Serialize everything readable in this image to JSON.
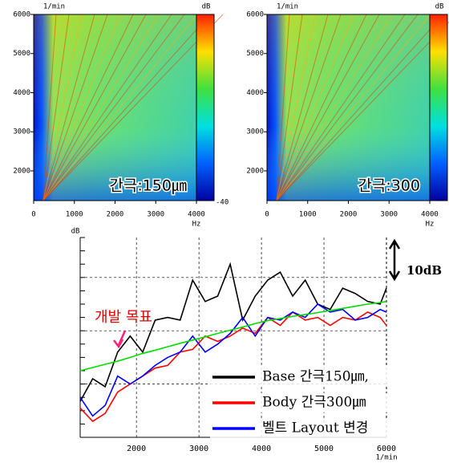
{
  "chart_data": [
    {
      "type": "spectrogram",
      "y_label": "1/min",
      "x_unit": "Hz",
      "colorbar_label": "dB",
      "colorbar_min_label": "-40",
      "annotation": "간극:150㎛",
      "xlim": [
        0,
        4000
      ],
      "ylim": [
        1240,
        6000
      ],
      "xticks": [
        0,
        1000,
        2000,
        3000,
        4000
      ],
      "yticks": [
        2000,
        3000,
        4000,
        5000,
        6000
      ]
    },
    {
      "type": "spectrogram",
      "y_label": "1/min",
      "x_unit": "Hz",
      "colorbar_label": "dB",
      "annotation": "간극:300",
      "xlim": [
        0,
        4000
      ],
      "ylim": [
        1240,
        6000
      ],
      "xticks": [
        0,
        1000,
        2000,
        3000,
        4000
      ],
      "yticks": [
        2000,
        3000,
        4000,
        5000,
        6000
      ]
    },
    {
      "type": "line",
      "y_label": "dB",
      "x_label": "1/min",
      "scale_label": "10dB",
      "target_label": "개발 목표",
      "xlim": [
        1100,
        6000
      ],
      "ylim": [
        0,
        75
      ],
      "xticks": [
        2000,
        3000,
        4000,
        5000,
        6000
      ],
      "yticks": [
        0,
        5,
        10,
        15,
        20,
        25,
        30,
        35,
        40,
        45,
        50,
        55,
        60,
        65,
        70,
        75
      ],
      "grid_yticks": [
        20,
        40,
        60
      ],
      "x": [
        1100,
        1300,
        1500,
        1700,
        1900,
        2100,
        2300,
        2500,
        2700,
        2900,
        3100,
        3300,
        3500,
        3700,
        3900,
        4100,
        4300,
        4500,
        4700,
        4900,
        5100,
        5300,
        5500,
        5700,
        5900,
        6000
      ],
      "series": [
        {
          "name": "Base 간극150㎛,",
          "color": "#000000",
          "values": [
            13.5,
            22,
            19,
            32,
            38,
            32,
            44,
            45,
            44,
            59,
            51,
            53,
            65,
            44,
            53,
            59,
            62,
            53,
            59,
            50,
            48,
            56,
            54,
            51,
            50,
            56
          ]
        },
        {
          "name": "Body 간극300㎛",
          "color": "#ff0000",
          "values": [
            11,
            6,
            9,
            17,
            20,
            23,
            26,
            27,
            32,
            33,
            38,
            36,
            38,
            41,
            39,
            45,
            42,
            47,
            44,
            45,
            42,
            45,
            44,
            47,
            45,
            42
          ]
        },
        {
          "name": "벨트 Layout 변경",
          "color": "#0000ff",
          "values": [
            15,
            8,
            12,
            23,
            20,
            23,
            27,
            30,
            32,
            38,
            32,
            35,
            39,
            45,
            38,
            45,
            44,
            47,
            45,
            50,
            47,
            48,
            44,
            45,
            48,
            47
          ]
        },
        {
          "color": "#00dd00",
          "values": [
            25,
            26.2,
            27.4,
            28.6,
            30,
            31.5,
            32.7,
            34,
            35.3,
            36.5,
            37.7,
            39,
            40.2,
            41.4,
            42.7,
            43.8,
            44.6,
            45.4,
            46.1,
            46.8,
            47.6,
            48.4,
            49.2,
            50,
            50.6,
            51
          ]
        }
      ]
    }
  ]
}
